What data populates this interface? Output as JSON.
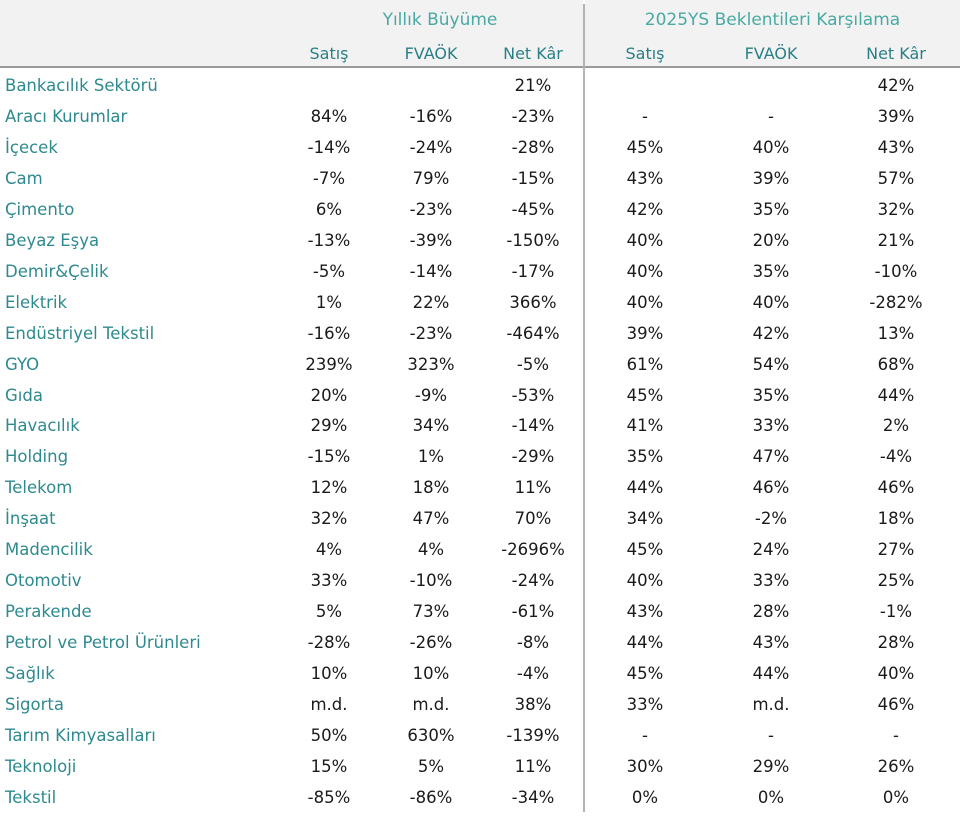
{
  "groups": [
    {
      "title": "Yıllık Büyüme"
    },
    {
      "title": "2025YS Beklentileri Karşılama"
    }
  ],
  "subheaders": [
    "Satış",
    "FVAÖK",
    "Net Kâr",
    "Satış",
    "FVAÖK",
    "Net Kâr"
  ],
  "rows": [
    {
      "sector": "Bankacılık Sektörü",
      "values": [
        "",
        "",
        "21%",
        "",
        "",
        "42%"
      ]
    },
    {
      "sector": "Aracı Kurumlar",
      "values": [
        "84%",
        "-16%",
        "-23%",
        "-",
        "-",
        "39%"
      ]
    },
    {
      "sector": "İçecek",
      "values": [
        "-14%",
        "-24%",
        "-28%",
        "45%",
        "40%",
        "43%"
      ]
    },
    {
      "sector": "Cam",
      "values": [
        "-7%",
        "79%",
        "-15%",
        "43%",
        "39%",
        "57%"
      ]
    },
    {
      "sector": "Çimento",
      "values": [
        "6%",
        "-23%",
        "-45%",
        "42%",
        "35%",
        "32%"
      ]
    },
    {
      "sector": "Beyaz Eşya",
      "values": [
        "-13%",
        "-39%",
        "-150%",
        "40%",
        "20%",
        "21%"
      ]
    },
    {
      "sector": "Demir&Çelik",
      "values": [
        "-5%",
        "-14%",
        "-17%",
        "40%",
        "35%",
        "-10%"
      ]
    },
    {
      "sector": "Elektrik",
      "values": [
        "1%",
        "22%",
        "366%",
        "40%",
        "40%",
        "-282%"
      ]
    },
    {
      "sector": "Endüstriyel Tekstil",
      "values": [
        "-16%",
        "-23%",
        "-464%",
        "39%",
        "42%",
        "13%"
      ]
    },
    {
      "sector": "GYO",
      "values": [
        "239%",
        "323%",
        "-5%",
        "61%",
        "54%",
        "68%"
      ]
    },
    {
      "sector": "Gıda",
      "values": [
        "20%",
        "-9%",
        "-53%",
        "45%",
        "35%",
        "44%"
      ]
    },
    {
      "sector": "Havacılık",
      "values": [
        "29%",
        "34%",
        "-14%",
        "41%",
        "33%",
        "2%"
      ]
    },
    {
      "sector": "Holding",
      "values": [
        "-15%",
        "1%",
        "-29%",
        "35%",
        "47%",
        "-4%"
      ]
    },
    {
      "sector": "Telekom",
      "values": [
        "12%",
        "18%",
        "11%",
        "44%",
        "46%",
        "46%"
      ]
    },
    {
      "sector": "İnşaat",
      "values": [
        "32%",
        "47%",
        "70%",
        "34%",
        "-2%",
        "18%"
      ]
    },
    {
      "sector": "Madencilik",
      "values": [
        "4%",
        "4%",
        "-2696%",
        "45%",
        "24%",
        "27%"
      ]
    },
    {
      "sector": "Otomotiv",
      "values": [
        "33%",
        "-10%",
        "-24%",
        "40%",
        "33%",
        "25%"
      ]
    },
    {
      "sector": "Perakende",
      "values": [
        "5%",
        "73%",
        "-61%",
        "43%",
        "28%",
        "-1%"
      ]
    },
    {
      "sector": "Petrol ve Petrol Ürünleri",
      "values": [
        "-28%",
        "-26%",
        "-8%",
        "44%",
        "43%",
        "28%"
      ]
    },
    {
      "sector": "Sağlık",
      "values": [
        "10%",
        "10%",
        "-4%",
        "45%",
        "44%",
        "40%"
      ]
    },
    {
      "sector": "Sigorta",
      "values": [
        "m.d.",
        "m.d.",
        "38%",
        "33%",
        "m.d.",
        "46%"
      ]
    },
    {
      "sector": "Tarım Kimyasalları",
      "values": [
        "50%",
        "630%",
        "-139%",
        "-",
        "-",
        "-"
      ]
    },
    {
      "sector": "Teknoloji",
      "values": [
        "15%",
        "5%",
        "11%",
        "30%",
        "29%",
        "26%"
      ]
    },
    {
      "sector": "Tekstil",
      "values": [
        "-85%",
        "-86%",
        "-34%",
        "0%",
        "0%",
        "0%"
      ]
    }
  ],
  "colors": {
    "header_text": "#4aa9a3",
    "label_text": "#2e8a8f",
    "header_band": "#f2f2f2"
  }
}
